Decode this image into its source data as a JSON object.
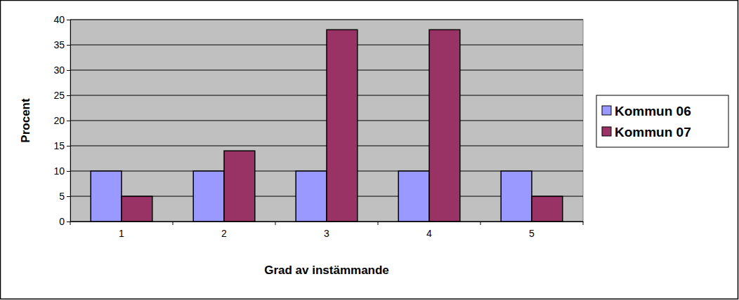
{
  "chart_data": {
    "type": "bar",
    "categories": [
      "1",
      "2",
      "3",
      "4",
      "5"
    ],
    "series": [
      {
        "name": "Kommun 06",
        "color": "#9999ff",
        "values": [
          10,
          10,
          10,
          10,
          10
        ]
      },
      {
        "name": "Kommun 07",
        "color": "#993366",
        "values": [
          5,
          14,
          38,
          38,
          5
        ]
      }
    ],
    "x_label": "Grad av instämmande",
    "y_label": "Procent",
    "ylim": [
      0,
      40
    ],
    "yticks": [
      0,
      5,
      10,
      15,
      20,
      25,
      30,
      35,
      40
    ],
    "grid": true,
    "legend": "right"
  }
}
